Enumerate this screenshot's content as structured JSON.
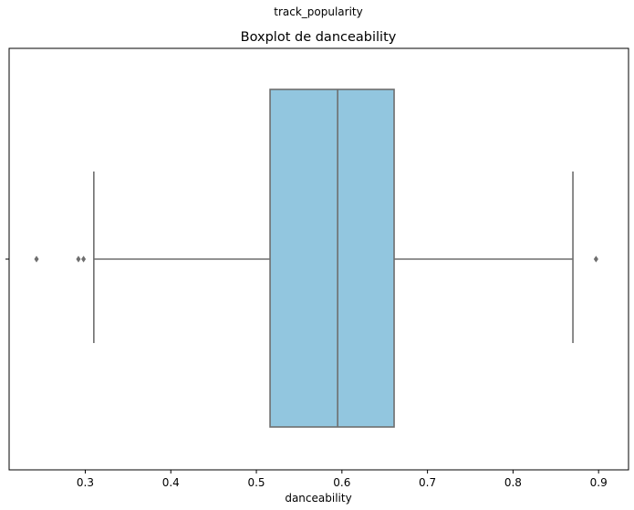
{
  "suptitle": "track_popularity",
  "chart_data": {
    "type": "boxplot",
    "orientation": "horizontal",
    "title": "Boxplot de danceability",
    "xlabel": "danceability",
    "ylabel": "",
    "xlim": [
      0.211,
      0.935
    ],
    "xticks": [
      0.3,
      0.4,
      0.5,
      0.6,
      0.7,
      0.8,
      0.9
    ],
    "xtick_labels": [
      "0.3",
      "0.4",
      "0.5",
      "0.6",
      "0.7",
      "0.8",
      "0.9"
    ],
    "grid": false,
    "box": {
      "whisker_low": 0.31,
      "q1": 0.516,
      "median": 0.595,
      "q3": 0.661,
      "whisker_high": 0.87,
      "outliers": [
        0.243,
        0.292,
        0.298,
        0.897
      ]
    },
    "colors": {
      "box_fill": "#92c6df",
      "line": "#6e6e6e"
    }
  }
}
